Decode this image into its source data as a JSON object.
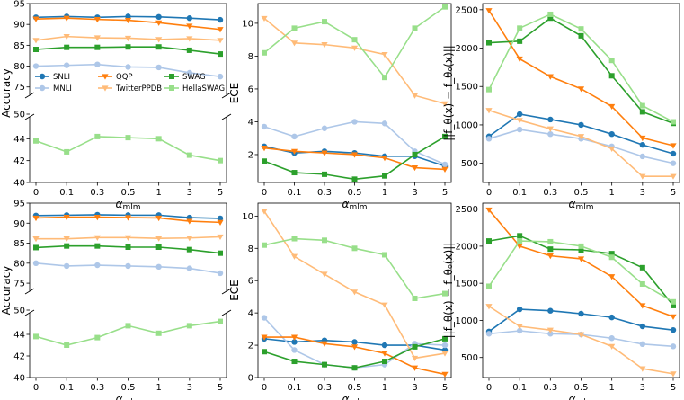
{
  "chart_data": {
    "type": "line",
    "layout": "2 rows x 3 columns of line plots",
    "categories": [
      "0",
      "0.1",
      "0.3",
      "0.5",
      "1",
      "3",
      "5"
    ],
    "xlabel": "α_mlm",
    "xlabel_main": "α",
    "xlabel_sub": "mlm",
    "legend": {
      "placement": "lower-center of the top-left plot, in 3 columns",
      "entries": [
        {
          "name": "SNLI",
          "color": "#1f77b4",
          "marker": "circle"
        },
        {
          "name": "MNLI",
          "color": "#aec7e8",
          "marker": "circle"
        },
        {
          "name": "QQP",
          "color": "#ff7f0e",
          "marker": "triangle-down"
        },
        {
          "name": "TwitterPPDB",
          "color": "#ffbb78",
          "marker": "triangle-down"
        },
        {
          "name": "SWAG",
          "color": "#2ca02c",
          "marker": "square"
        },
        {
          "name": "HellaSWAG",
          "color": "#98df8a",
          "marker": "square"
        }
      ]
    },
    "panels": [
      {
        "row": 1,
        "col": 1,
        "type": "line",
        "broken_axis": true,
        "ylabel": "Accuracy",
        "upper_ylim": [
          73,
          95
        ],
        "upper_ticks": [
          "75",
          "80",
          "85",
          "90",
          "95"
        ],
        "upper_tick_values": [
          75,
          80,
          85,
          90,
          95
        ],
        "lower_ylim": [
          40,
          46
        ],
        "lower_ticks": [
          "40",
          "42",
          "44"
        ],
        "lower_tick_values": [
          40,
          42,
          44
        ],
        "break_tick": "50",
        "break_tick_value": 50,
        "series": [
          {
            "name": "SNLI",
            "values": [
              91.7,
              91.9,
              91.7,
              91.9,
              91.8,
              91.5,
              91.1
            ]
          },
          {
            "name": "MNLI",
            "values": [
              80.0,
              80.2,
              80.4,
              79.8,
              79.7,
              78.4,
              77.5
            ]
          },
          {
            "name": "QQP",
            "values": [
              91.3,
              91.5,
              91.2,
              91.0,
              90.4,
              89.6,
              88.8
            ]
          },
          {
            "name": "TwitterPPDB",
            "values": [
              86.2,
              87.1,
              86.8,
              86.7,
              86.4,
              86.6,
              86.2
            ]
          },
          {
            "name": "SWAG",
            "values": [
              84.0,
              84.5,
              84.5,
              84.6,
              84.6,
              83.8,
              82.9
            ]
          },
          {
            "name": "HellaSWAG",
            "values": [
              43.8,
              42.8,
              44.2,
              44.1,
              44.0,
              42.5,
              42.0
            ]
          }
        ]
      },
      {
        "row": 1,
        "col": 2,
        "type": "line",
        "ylabel": "ECE",
        "ylim": [
          0.3,
          11.2
        ],
        "ticks": [
          "2",
          "4",
          "6",
          "8",
          "10"
        ],
        "tick_values": [
          2,
          4,
          6,
          8,
          10
        ],
        "series": [
          {
            "name": "SNLI",
            "values": [
              2.5,
              2.1,
              2.2,
              2.1,
              1.9,
              1.9,
              1.3
            ]
          },
          {
            "name": "MNLI",
            "values": [
              3.7,
              3.1,
              3.6,
              4.0,
              3.9,
              2.2,
              1.4
            ]
          },
          {
            "name": "QQP",
            "values": [
              2.4,
              2.2,
              2.1,
              2.0,
              1.8,
              1.2,
              1.1
            ]
          },
          {
            "name": "TwitterPPDB",
            "values": [
              10.3,
              8.8,
              8.7,
              8.5,
              8.1,
              5.6,
              5.1
            ]
          },
          {
            "name": "SWAG",
            "values": [
              1.6,
              0.9,
              0.8,
              0.5,
              0.7,
              2.0,
              3.1
            ]
          },
          {
            "name": "HellaSWAG",
            "values": [
              8.2,
              9.7,
              10.1,
              9.0,
              6.7,
              9.7,
              11.0
            ]
          }
        ]
      },
      {
        "row": 1,
        "col": 3,
        "type": "line",
        "ylabel": "||f_θ(x) − f_θ₀(x)||",
        "ylim": [
          250,
          2580
        ],
        "ticks": [
          "500",
          "1000",
          "1500",
          "2000",
          "2500"
        ],
        "tick_values": [
          500,
          1000,
          1500,
          2000,
          2500
        ],
        "series": [
          {
            "name": "SNLI",
            "values": [
              850,
              1140,
              1070,
              1000,
              880,
              740,
              625
            ]
          },
          {
            "name": "MNLI",
            "values": [
              820,
              940,
              880,
              820,
              720,
              590,
              500
            ]
          },
          {
            "name": "QQP",
            "values": [
              2490,
              1860,
              1630,
              1470,
              1240,
              830,
              730
            ]
          },
          {
            "name": "TwitterPPDB",
            "values": [
              1190,
              1060,
              950,
              850,
              690,
              330,
              330
            ]
          },
          {
            "name": "SWAG",
            "values": [
              2070,
              2090,
              2390,
              2160,
              1640,
              1170,
              1020
            ]
          },
          {
            "name": "HellaSWAG",
            "values": [
              1460,
              2260,
              2440,
              2250,
              1840,
              1250,
              1040
            ]
          }
        ]
      },
      {
        "row": 2,
        "col": 1,
        "type": "line",
        "broken_axis": true,
        "ylabel": "Accuracy",
        "upper_ylim": [
          73,
          95
        ],
        "upper_ticks": [
          "75",
          "80",
          "85",
          "90",
          "95"
        ],
        "upper_tick_values": [
          75,
          80,
          85,
          90,
          95
        ],
        "lower_ylim": [
          40,
          46
        ],
        "lower_ticks": [
          "40",
          "42",
          "44"
        ],
        "lower_tick_values": [
          40,
          42,
          44
        ],
        "break_tick": "50",
        "break_tick_value": 50,
        "series": [
          {
            "name": "SNLI",
            "values": [
              91.9,
              92.0,
              92.1,
              92.0,
              92.0,
              91.4,
              91.2
            ]
          },
          {
            "name": "MNLI",
            "values": [
              80.0,
              79.3,
              79.5,
              79.3,
              79.1,
              78.7,
              77.5
            ]
          },
          {
            "name": "QQP",
            "values": [
              91.3,
              91.5,
              91.5,
              91.4,
              91.3,
              90.5,
              90.2
            ]
          },
          {
            "name": "TwitterPPDB",
            "values": [
              86.1,
              86.1,
              86.4,
              86.4,
              86.2,
              86.3,
              86.6
            ]
          },
          {
            "name": "SWAG",
            "values": [
              83.9,
              84.3,
              84.3,
              84.0,
              84.0,
              83.4,
              82.5
            ]
          },
          {
            "name": "HellaSWAG",
            "values": [
              43.8,
              43.0,
              43.7,
              44.8,
              44.1,
              44.8,
              45.2
            ]
          }
        ]
      },
      {
        "row": 2,
        "col": 2,
        "type": "line",
        "ylabel": "ECE",
        "ylim": [
          0,
          10.8
        ],
        "ticks": [
          "0",
          "2",
          "4",
          "6",
          "8",
          "10"
        ],
        "tick_values": [
          0,
          2,
          4,
          6,
          8,
          10
        ],
        "series": [
          {
            "name": "SNLI",
            "values": [
              2.4,
              2.2,
              2.3,
              2.2,
              2.0,
              2.0,
              1.7
            ]
          },
          {
            "name": "MNLI",
            "values": [
              3.7,
              1.7,
              0.8,
              0.6,
              0.8,
              2.1,
              2.0
            ]
          },
          {
            "name": "QQP",
            "values": [
              2.5,
              2.5,
              2.1,
              1.9,
              1.5,
              0.6,
              0.2
            ]
          },
          {
            "name": "TwitterPPDB",
            "values": [
              10.3,
              7.5,
              6.4,
              5.3,
              4.5,
              1.2,
              1.5
            ]
          },
          {
            "name": "SWAG",
            "values": [
              1.6,
              1.0,
              0.8,
              0.6,
              1.0,
              1.9,
              2.4
            ]
          },
          {
            "name": "HellaSWAG",
            "values": [
              8.2,
              8.6,
              8.5,
              8.0,
              7.6,
              4.9,
              5.2
            ]
          }
        ]
      },
      {
        "row": 2,
        "col": 3,
        "type": "line",
        "ylabel": "||f_θ(x) − f_θ₀(x)||",
        "ylim": [
          230,
          2580
        ],
        "ticks": [
          "500",
          "1000",
          "1500",
          "2000",
          "2500"
        ],
        "tick_values": [
          500,
          1000,
          1500,
          2000,
          2500
        ],
        "series": [
          {
            "name": "SNLI",
            "values": [
              850,
              1150,
              1130,
              1090,
              1040,
              920,
              870
            ]
          },
          {
            "name": "MNLI",
            "values": [
              820,
              860,
              820,
              810,
              760,
              680,
              650
            ]
          },
          {
            "name": "QQP",
            "values": [
              2490,
              2000,
              1870,
              1830,
              1590,
              1200,
              1050
            ]
          },
          {
            "name": "TwitterPPDB",
            "values": [
              1190,
              920,
              870,
              810,
              650,
              350,
              280
            ]
          },
          {
            "name": "SWAG",
            "values": [
              2070,
              2140,
              1960,
              1950,
              1900,
              1710,
              1200
            ]
          },
          {
            "name": "HellaSWAG",
            "values": [
              1460,
              2070,
              2060,
              2000,
              1850,
              1490,
              1250
            ]
          }
        ]
      }
    ]
  }
}
